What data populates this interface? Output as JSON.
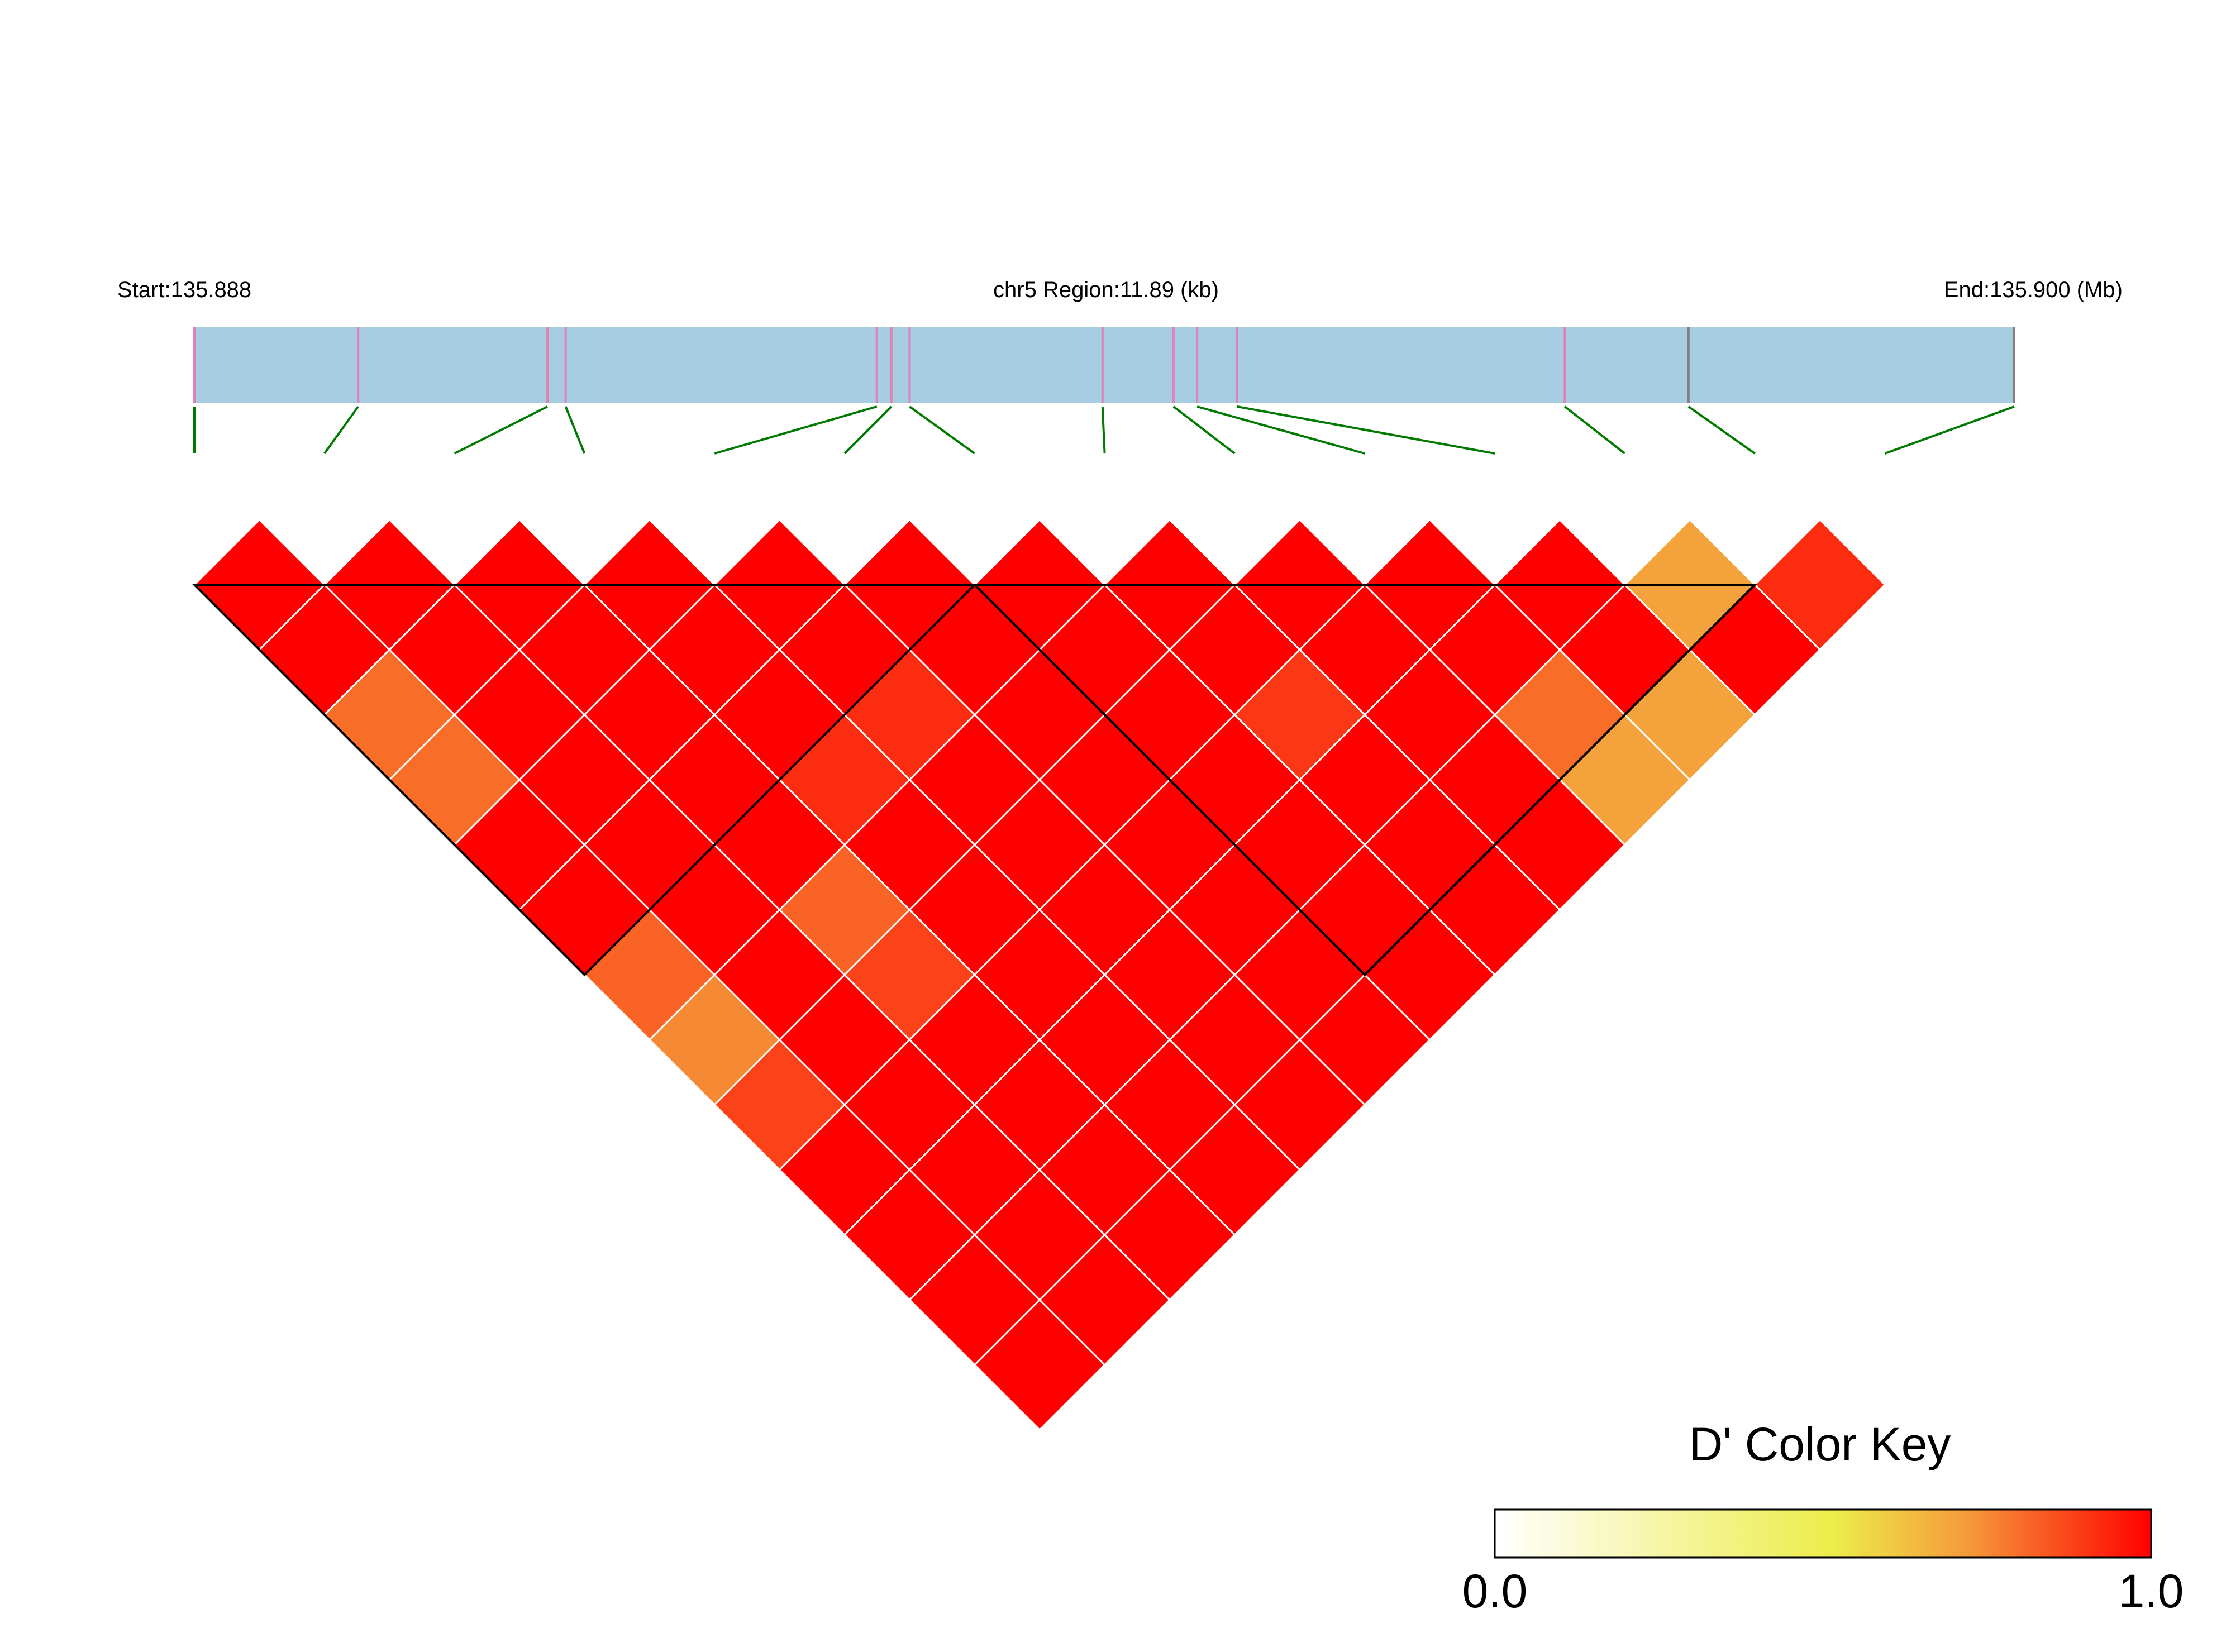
{
  "chart_data": {
    "type": "heatmap",
    "subtype": "ld-triangle",
    "header": {
      "start_label": "Start:135.888",
      "region_label": "chr5 Region:11.89 (kb)",
      "end_label": "End:135.900 (Mb)"
    },
    "region": {
      "chromosome": "chr5",
      "start_mb": 135.888,
      "end_mb": 135.9,
      "length_kb": 11.89
    },
    "snp_fractions": [
      0.0,
      0.09,
      0.194,
      0.204,
      0.375,
      0.383,
      0.393,
      0.499,
      0.538,
      0.551,
      0.573,
      0.753,
      0.821,
      1.0
    ],
    "snp_colors": [
      "#e082b8",
      "#e082b8",
      "#e082b8",
      "#e082b8",
      "#e082b8",
      "#e082b8",
      "#e082b8",
      "#e082b8",
      "#e082b8",
      "#e082b8",
      "#e082b8",
      "#e082b8",
      "#808080",
      "#808080"
    ],
    "ld_dprime": [
      [
        1.0,
        1.0,
        0.8,
        0.8,
        1.0,
        1.0,
        0.82,
        0.75,
        0.88,
        1.0,
        1.0,
        1.0,
        1.0
      ],
      [
        1.0,
        1.0,
        1.0,
        1.0,
        1.0,
        1.0,
        1.0,
        1.0,
        1.0,
        1.0,
        1.0,
        1.0
      ],
      [
        1.0,
        1.0,
        1.0,
        1.0,
        1.0,
        0.82,
        0.88,
        1.0,
        1.0,
        1.0,
        1.0
      ],
      [
        1.0,
        1.0,
        1.0,
        0.92,
        1.0,
        1.0,
        1.0,
        1.0,
        1.0,
        1.0
      ],
      [
        1.0,
        1.0,
        0.92,
        1.0,
        1.0,
        1.0,
        1.0,
        1.0,
        1.0
      ],
      [
        1.0,
        1.0,
        1.0,
        1.0,
        1.0,
        1.0,
        1.0,
        1.0
      ],
      [
        1.0,
        1.0,
        1.0,
        1.0,
        1.0,
        1.0,
        1.0
      ],
      [
        1.0,
        1.0,
        0.9,
        1.0,
        1.0,
        1.0
      ],
      [
        1.0,
        1.0,
        1.0,
        1.0,
        1.0
      ],
      [
        1.0,
        1.0,
        0.8,
        0.7
      ],
      [
        1.0,
        1.0,
        0.7
      ],
      [
        0.7,
        1.0
      ],
      [
        0.92
      ]
    ],
    "blocks": [
      {
        "first_snp": 1,
        "last_snp": 7
      },
      {
        "first_snp": 7,
        "last_snp": 13
      }
    ],
    "colors": {
      "genomic_bar": "#a6cde1",
      "connector": "#007a00",
      "block_outline": "#000000",
      "cell_border": "#ffffff"
    },
    "color_key": {
      "title": "D' Color Key",
      "min_label": "0.0",
      "max_label": "1.0",
      "min": 0.0,
      "max": 1.0,
      "stops": [
        "#ffffff",
        "#ecec4a",
        "#f59a3a",
        "#ff0000"
      ]
    }
  }
}
